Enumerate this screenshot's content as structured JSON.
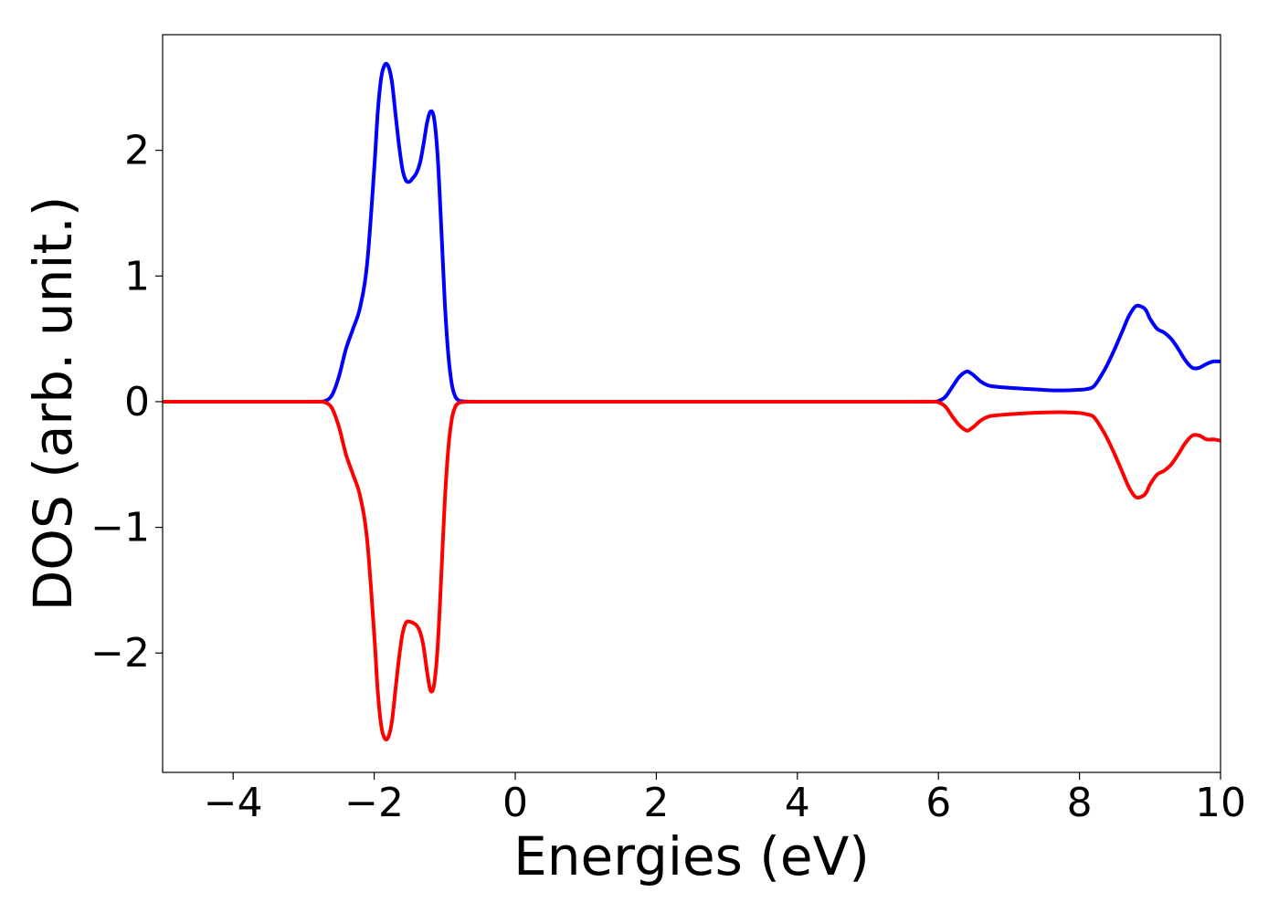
{
  "chart_data": {
    "type": "line",
    "xlabel": "Energies (eV)",
    "ylabel": "DOS (arb. unit.)",
    "xlim": [
      -5,
      10
    ],
    "ylim": [
      -2.95,
      2.92
    ],
    "xticks": [
      -4,
      -2,
      0,
      2,
      4,
      6,
      8,
      10
    ],
    "xtick_labels": [
      "−4",
      "−2",
      "0",
      "2",
      "4",
      "6",
      "8",
      "10"
    ],
    "yticks": [
      -2,
      -1,
      0,
      1,
      2
    ],
    "ytick_labels": [
      "−2",
      "−1",
      "0",
      "1",
      "2"
    ],
    "grid": false,
    "series": [
      {
        "color": "#0000ff",
        "x": [
          -5,
          -3.0,
          -2.8,
          -2.7,
          -2.6,
          -2.5,
          -2.4,
          -2.3,
          -2.2,
          -2.1,
          -2.0,
          -1.95,
          -1.9,
          -1.85,
          -1.8,
          -1.75,
          -1.7,
          -1.65,
          -1.6,
          -1.55,
          -1.5,
          -1.45,
          -1.4,
          -1.35,
          -1.3,
          -1.25,
          -1.2,
          -1.15,
          -1.1,
          -1.05,
          -1.0,
          -0.95,
          -0.9,
          -0.85,
          -0.8,
          -0.75,
          -0.7,
          -0.65,
          -0.6,
          -0.55,
          -0.5,
          -0.45,
          -0.4,
          0,
          2,
          4,
          5.5,
          5.9,
          6.0,
          6.1,
          6.2,
          6.3,
          6.4,
          6.45,
          6.5,
          6.6,
          6.7,
          6.8,
          7.0,
          7.3,
          7.6,
          7.8,
          8.0,
          8.1,
          8.2,
          8.3,
          8.4,
          8.5,
          8.6,
          8.7,
          8.8,
          8.9,
          8.95,
          9.0,
          9.1,
          9.2,
          9.3,
          9.4,
          9.5,
          9.6,
          9.7,
          9.8,
          9.9,
          10.0
        ],
        "values": [
          0,
          0,
          0,
          0.005,
          0.05,
          0.2,
          0.42,
          0.58,
          0.75,
          1.1,
          1.85,
          2.3,
          2.58,
          2.68,
          2.67,
          2.55,
          2.3,
          2.05,
          1.85,
          1.76,
          1.75,
          1.78,
          1.82,
          1.9,
          2.05,
          2.22,
          2.31,
          2.25,
          1.95,
          1.4,
          0.8,
          0.38,
          0.14,
          0.04,
          0.01,
          0.003,
          0.001,
          0.0005,
          0,
          0,
          0,
          0,
          0,
          0,
          0,
          0,
          0,
          0,
          0.005,
          0.04,
          0.12,
          0.2,
          0.24,
          0.23,
          0.21,
          0.16,
          0.13,
          0.12,
          0.11,
          0.1,
          0.09,
          0.09,
          0.095,
          0.1,
          0.12,
          0.2,
          0.3,
          0.42,
          0.55,
          0.68,
          0.76,
          0.75,
          0.72,
          0.66,
          0.58,
          0.55,
          0.5,
          0.42,
          0.33,
          0.27,
          0.27,
          0.3,
          0.32,
          0.32
        ]
      },
      {
        "color": "#ff0000",
        "x": [
          -5,
          -3.0,
          -2.8,
          -2.7,
          -2.6,
          -2.5,
          -2.4,
          -2.3,
          -2.2,
          -2.1,
          -2.0,
          -1.95,
          -1.9,
          -1.85,
          -1.8,
          -1.75,
          -1.7,
          -1.65,
          -1.6,
          -1.55,
          -1.5,
          -1.45,
          -1.4,
          -1.35,
          -1.3,
          -1.25,
          -1.2,
          -1.15,
          -1.1,
          -1.05,
          -1.0,
          -0.95,
          -0.9,
          -0.85,
          -0.8,
          -0.75,
          -0.7,
          -0.65,
          -0.6,
          -0.55,
          -0.5,
          -0.45,
          -0.4,
          0,
          2,
          4,
          5.5,
          5.9,
          6.0,
          6.1,
          6.2,
          6.3,
          6.4,
          6.45,
          6.5,
          6.6,
          6.7,
          6.8,
          7.0,
          7.3,
          7.6,
          7.8,
          8.0,
          8.1,
          8.2,
          8.3,
          8.4,
          8.5,
          8.6,
          8.7,
          8.8,
          8.9,
          8.95,
          9.0,
          9.1,
          9.2,
          9.3,
          9.4,
          9.5,
          9.6,
          9.7,
          9.8,
          9.9,
          10.0
        ],
        "values": [
          0,
          0,
          0,
          -0.005,
          -0.05,
          -0.2,
          -0.42,
          -0.58,
          -0.75,
          -1.1,
          -1.85,
          -2.3,
          -2.58,
          -2.68,
          -2.67,
          -2.55,
          -2.3,
          -2.05,
          -1.85,
          -1.76,
          -1.75,
          -1.76,
          -1.78,
          -1.83,
          -1.95,
          -2.15,
          -2.3,
          -2.25,
          -1.95,
          -1.4,
          -0.8,
          -0.38,
          -0.14,
          -0.04,
          -0.01,
          -0.003,
          -0.001,
          -0.0005,
          0,
          0,
          0,
          0,
          0,
          0,
          0,
          0,
          0,
          0,
          -0.005,
          -0.04,
          -0.12,
          -0.19,
          -0.23,
          -0.22,
          -0.2,
          -0.15,
          -0.12,
          -0.11,
          -0.1,
          -0.09,
          -0.085,
          -0.085,
          -0.09,
          -0.1,
          -0.12,
          -0.2,
          -0.3,
          -0.42,
          -0.55,
          -0.68,
          -0.76,
          -0.75,
          -0.72,
          -0.66,
          -0.58,
          -0.55,
          -0.5,
          -0.42,
          -0.33,
          -0.27,
          -0.27,
          -0.3,
          -0.3,
          -0.31
        ]
      }
    ]
  }
}
